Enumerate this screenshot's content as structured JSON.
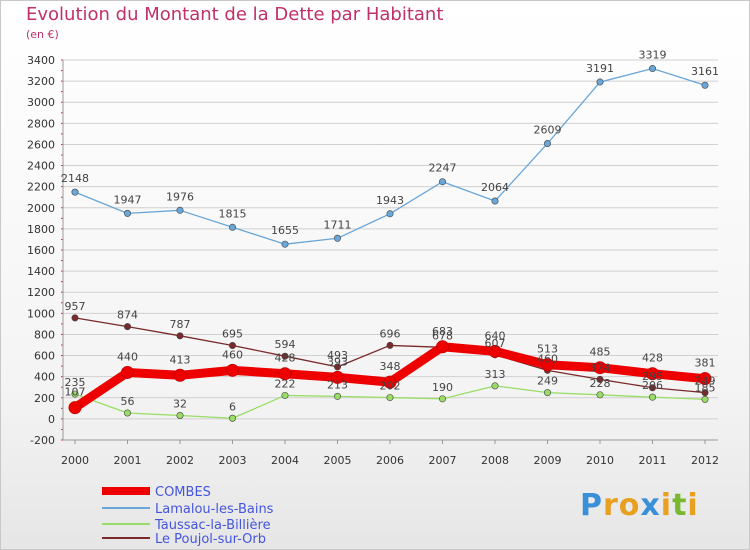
{
  "title": "Evolution du Montant de la Dette par Habitant",
  "subtitle": "(en €)",
  "brand": {
    "text": "Proxiti",
    "letters": [
      "P",
      "r",
      "o",
      "x",
      "i",
      "t",
      "i"
    ],
    "letter_colors": [
      "#3a8fd9",
      "#e8a020",
      "#e8a020",
      "#3a8fd9",
      "#e8a020",
      "#7ab830",
      "#e8a020"
    ]
  },
  "colors": {
    "title": "#c0306a",
    "grid": "#d0d0d0",
    "axis_tick": "#c0306a"
  },
  "chart_data": {
    "type": "line",
    "x": [
      "2000",
      "2001",
      "2002",
      "2003",
      "2004",
      "2005",
      "2006",
      "2007",
      "2008",
      "2009",
      "2010",
      "2011",
      "2012"
    ],
    "ylim": [
      -200,
      3400
    ],
    "yticks": [
      -200,
      0,
      200,
      400,
      600,
      800,
      1000,
      1200,
      1400,
      1600,
      1800,
      2000,
      2200,
      2400,
      2600,
      2800,
      3000,
      3200,
      3400
    ],
    "grid": true,
    "legend_position": "bottom-left",
    "series": [
      {
        "name": "COMBES",
        "color": "#ee0000",
        "values": [
          107,
          440,
          413,
          460,
          428,
          393,
          348,
          683,
          640,
          513,
          485,
          428,
          381
        ]
      },
      {
        "name": "Lamalou-les-Bains",
        "color": "#6aa6d8",
        "values": [
          2148,
          1947,
          1976,
          1815,
          1655,
          1711,
          1943,
          2247,
          2064,
          2609,
          3191,
          3319,
          3161
        ]
      },
      {
        "name": "Taussac-la-Billière",
        "color": "#99dd66",
        "values": [
          235,
          56,
          32,
          6,
          222,
          213,
          202,
          190,
          313,
          249,
          228,
          206,
          185
        ]
      },
      {
        "name": "Le Poujol-sur-Orb",
        "color": "#7a2a2a",
        "values": [
          957,
          874,
          787,
          695,
          594,
          493,
          696,
          678,
          607,
          460,
          374,
          295,
          249
        ]
      }
    ]
  }
}
